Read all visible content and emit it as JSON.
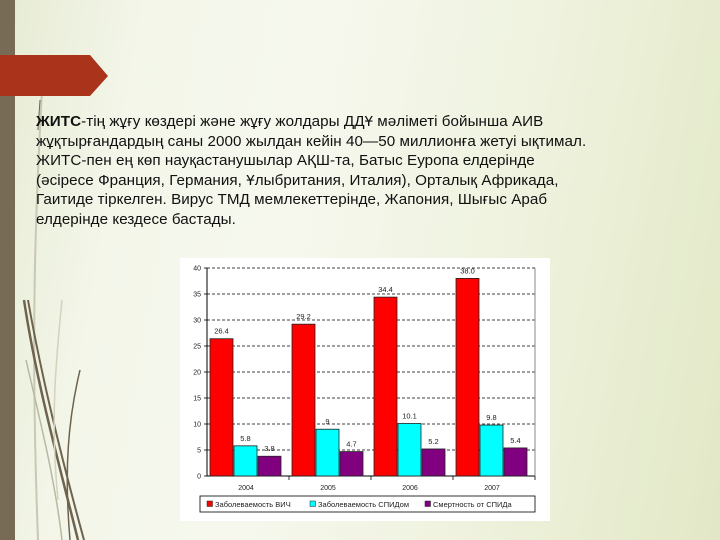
{
  "slide": {
    "accent_arrow_color": "#a9331b",
    "side_band_color": "#776b55",
    "text": {
      "lead_bold": "ЖИТС",
      "lead_rest": "-тің жұғу көздері және жұғу жолдары ДДҰ мәліметі бойынша АИВ",
      "lines": [
        "жұқтырғандардың саны 2000 жылдан кейін 40—50 миллионға жетуі ықтимал.",
        "ЖИТС-пен ең көп науқастанушылар АҚШ-та, Батыс Еуропа елдерінде",
        "(әсіресе Франция, Германия, Ұлыбритания, Италия), Орталық Африкада,",
        "Гаитиде тіркелген. Вирус ТМД мемлекеттерінде, Жапония, Шығыс Араб",
        "елдерінде кездесе бастады."
      ]
    }
  },
  "chart_data": {
    "type": "bar",
    "title": "",
    "xlabel": "",
    "ylabel": "",
    "categories": [
      "2004",
      "2005",
      "2006",
      "2007"
    ],
    "series": [
      {
        "name": "Заболеваемость ВИЧ",
        "color": "#ff0000",
        "values": [
          26.4,
          29.2,
          34.4,
          38.0
        ],
        "labels": [
          "26.4",
          "29.2",
          "34.4",
          "38.0"
        ]
      },
      {
        "name": "Заболеваемость СПИДом",
        "color": "#00ffff",
        "values": [
          5.8,
          9.0,
          10.1,
          9.8
        ],
        "labels": [
          "5.8",
          "9",
          "10.1",
          "9.8"
        ]
      },
      {
        "name": "Смертность от СПИДа",
        "color": "#800080",
        "values": [
          3.8,
          4.7,
          5.2,
          5.4
        ],
        "labels": [
          "3.8",
          "4.7",
          "5.2",
          "5.4"
        ]
      }
    ],
    "ylim": [
      0,
      40
    ],
    "yticks": [
      0,
      5,
      10,
      15,
      20,
      25,
      30,
      35,
      40
    ],
    "grid": "dashed horizontal",
    "legend_position": "bottom"
  }
}
